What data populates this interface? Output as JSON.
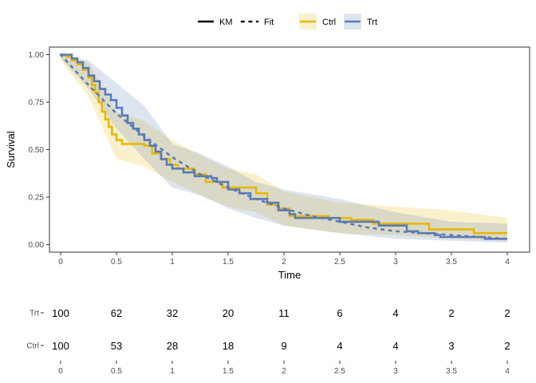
{
  "chart_data": {
    "type": "line",
    "xlabel": "Time",
    "ylabel": "Survival",
    "xlim": [
      -0.1,
      4.2
    ],
    "ylim": [
      -0.04,
      1.04
    ],
    "x_ticks": [
      "0",
      "0.5",
      "1",
      "1.5",
      "2",
      "2.5",
      "3",
      "3.5",
      "4"
    ],
    "y_ticks": [
      "0.00",
      "0.25",
      "0.50",
      "0.75",
      "1.00"
    ],
    "grid": false,
    "legend": {
      "position": "top",
      "linetype_entries": [
        "KM",
        "Fit"
      ],
      "group_entries": [
        "Ctrl",
        "Trt"
      ]
    },
    "colors": {
      "Ctrl": "#E7B800",
      "Trt": "#5A7BB6"
    },
    "series": [
      {
        "name": "Ctrl",
        "color": "#E7B800",
        "km_steps": [
          [
            0,
            1.0
          ],
          [
            0.05,
            0.99
          ],
          [
            0.1,
            0.97
          ],
          [
            0.15,
            0.95
          ],
          [
            0.2,
            0.92
          ],
          [
            0.25,
            0.88
          ],
          [
            0.28,
            0.84
          ],
          [
            0.31,
            0.8
          ],
          [
            0.34,
            0.75
          ],
          [
            0.37,
            0.7
          ],
          [
            0.4,
            0.66
          ],
          [
            0.43,
            0.62
          ],
          [
            0.46,
            0.58
          ],
          [
            0.5,
            0.55
          ],
          [
            0.55,
            0.53
          ],
          [
            0.65,
            0.53
          ],
          [
            0.75,
            0.52
          ],
          [
            0.82,
            0.48
          ],
          [
            0.9,
            0.45
          ],
          [
            0.98,
            0.42
          ],
          [
            1.05,
            0.4
          ],
          [
            1.2,
            0.37
          ],
          [
            1.3,
            0.33
          ],
          [
            1.45,
            0.3
          ],
          [
            1.6,
            0.3
          ],
          [
            1.75,
            0.27
          ],
          [
            1.85,
            0.21
          ],
          [
            1.95,
            0.19
          ],
          [
            2.05,
            0.15
          ],
          [
            2.4,
            0.14
          ],
          [
            2.6,
            0.13
          ],
          [
            2.8,
            0.11
          ],
          [
            2.95,
            0.11
          ],
          [
            3.3,
            0.11
          ],
          [
            3.3,
            0.08
          ],
          [
            3.7,
            0.08
          ],
          [
            3.7,
            0.06
          ],
          [
            4.0,
            0.06
          ]
        ],
        "ci_upper": [
          [
            0,
            1.0
          ],
          [
            0.25,
            0.96
          ],
          [
            0.5,
            0.7
          ],
          [
            0.75,
            0.65
          ],
          [
            1.0,
            0.55
          ],
          [
            1.25,
            0.47
          ],
          [
            1.5,
            0.4
          ],
          [
            1.75,
            0.37
          ],
          [
            2.0,
            0.28
          ],
          [
            2.5,
            0.22
          ],
          [
            3.0,
            0.2
          ],
          [
            3.5,
            0.18
          ],
          [
            4.0,
            0.14
          ]
        ],
        "ci_lower": [
          [
            0,
            0.97
          ],
          [
            0.25,
            0.78
          ],
          [
            0.5,
            0.45
          ],
          [
            0.75,
            0.41
          ],
          [
            1.0,
            0.33
          ],
          [
            1.25,
            0.26
          ],
          [
            1.5,
            0.2
          ],
          [
            1.75,
            0.17
          ],
          [
            2.0,
            0.1
          ],
          [
            2.5,
            0.06
          ],
          [
            3.0,
            0.05
          ],
          [
            3.5,
            0.03
          ],
          [
            4.0,
            0.02
          ]
        ]
      },
      {
        "name": "Trt",
        "color": "#5A7BB6",
        "km_steps": [
          [
            0,
            1.0
          ],
          [
            0.05,
            1.0
          ],
          [
            0.1,
            0.98
          ],
          [
            0.15,
            0.96
          ],
          [
            0.2,
            0.93
          ],
          [
            0.25,
            0.89
          ],
          [
            0.3,
            0.86
          ],
          [
            0.35,
            0.82
          ],
          [
            0.4,
            0.79
          ],
          [
            0.45,
            0.76
          ],
          [
            0.5,
            0.72
          ],
          [
            0.55,
            0.68
          ],
          [
            0.6,
            0.64
          ],
          [
            0.65,
            0.61
          ],
          [
            0.7,
            0.58
          ],
          [
            0.75,
            0.55
          ],
          [
            0.8,
            0.52
          ],
          [
            0.85,
            0.49
          ],
          [
            0.9,
            0.45
          ],
          [
            0.95,
            0.42
          ],
          [
            1.0,
            0.4
          ],
          [
            1.1,
            0.38
          ],
          [
            1.2,
            0.36
          ],
          [
            1.35,
            0.35
          ],
          [
            1.4,
            0.33
          ],
          [
            1.5,
            0.29
          ],
          [
            1.6,
            0.27
          ],
          [
            1.7,
            0.24
          ],
          [
            1.85,
            0.22
          ],
          [
            1.95,
            0.18
          ],
          [
            2.05,
            0.16
          ],
          [
            2.1,
            0.14
          ],
          [
            2.4,
            0.14
          ],
          [
            2.5,
            0.12
          ],
          [
            2.85,
            0.1
          ],
          [
            3.1,
            0.07
          ],
          [
            3.2,
            0.06
          ],
          [
            3.35,
            0.05
          ],
          [
            3.4,
            0.04
          ],
          [
            3.6,
            0.04
          ],
          [
            3.75,
            0.04
          ],
          [
            3.8,
            0.03
          ],
          [
            4.0,
            0.03
          ]
        ],
        "ci_upper": [
          [
            0,
            1.0
          ],
          [
            0.25,
            0.97
          ],
          [
            0.5,
            0.85
          ],
          [
            0.75,
            0.73
          ],
          [
            1.0,
            0.53
          ],
          [
            1.25,
            0.48
          ],
          [
            1.5,
            0.41
          ],
          [
            1.75,
            0.33
          ],
          [
            2.0,
            0.29
          ],
          [
            2.5,
            0.24
          ],
          [
            3.0,
            0.17
          ],
          [
            3.5,
            0.12
          ],
          [
            4.0,
            0.11
          ]
        ],
        "ci_lower": [
          [
            0,
            0.98
          ],
          [
            0.25,
            0.82
          ],
          [
            0.5,
            0.61
          ],
          [
            0.75,
            0.45
          ],
          [
            1.0,
            0.3
          ],
          [
            1.25,
            0.26
          ],
          [
            1.5,
            0.19
          ],
          [
            1.75,
            0.14
          ],
          [
            2.0,
            0.1
          ],
          [
            2.5,
            0.06
          ],
          [
            3.0,
            0.03
          ],
          [
            3.5,
            0.02
          ],
          [
            4.0,
            0.01
          ]
        ]
      }
    ],
    "fit_curve": {
      "name": "Fit",
      "points": [
        [
          0,
          1.0
        ],
        [
          0.25,
          0.84
        ],
        [
          0.5,
          0.69
        ],
        [
          0.75,
          0.57
        ],
        [
          1.0,
          0.46
        ],
        [
          1.25,
          0.37
        ],
        [
          1.5,
          0.3
        ],
        [
          1.75,
          0.24
        ],
        [
          2.0,
          0.19
        ],
        [
          2.25,
          0.15
        ],
        [
          2.5,
          0.12
        ],
        [
          2.75,
          0.09
        ],
        [
          3.0,
          0.07
        ],
        [
          3.25,
          0.06
        ],
        [
          3.5,
          0.05
        ],
        [
          3.75,
          0.04
        ],
        [
          4.0,
          0.03
        ]
      ]
    },
    "risk_table": {
      "times": [
        "0",
        "0.5",
        "1",
        "1.5",
        "2",
        "2.5",
        "3",
        "3.5",
        "4"
      ],
      "rows": [
        {
          "label": "Trt",
          "values": [
            "100",
            "62",
            "32",
            "20",
            "11",
            "6",
            "4",
            "2",
            "2"
          ]
        },
        {
          "label": "Ctrl",
          "values": [
            "100",
            "53",
            "28",
            "18",
            "9",
            "4",
            "4",
            "3",
            "2"
          ]
        }
      ]
    }
  }
}
